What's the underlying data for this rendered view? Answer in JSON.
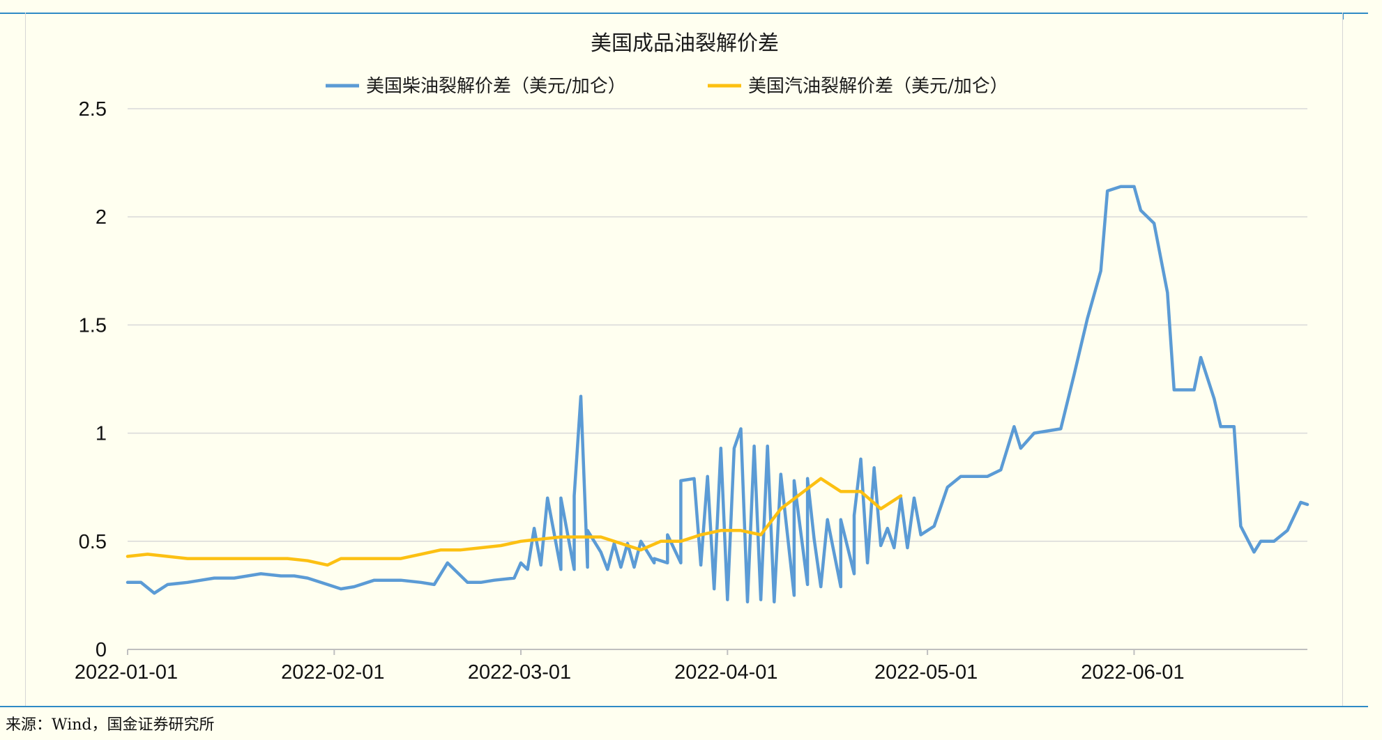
{
  "source": "来源：Wind，国金证券研究所",
  "colors": {
    "diesel": "#5b9bd5",
    "gasoline": "#fcc012",
    "frame": "#2e8ac6"
  },
  "chart_data": {
    "type": "line",
    "title": "美国成品油裂解价差",
    "legend_position": "top",
    "grid": "horizontal",
    "ylim": [
      0,
      2.5
    ],
    "yticks": [
      "0",
      "0.5",
      "1",
      "1.5",
      "2",
      "2.5"
    ],
    "xlim": [
      "2022-01-01",
      "2022-06-27"
    ],
    "xticks": [
      "2022-01-01",
      "2022-02-01",
      "2022-03-01",
      "2022-04-01",
      "2022-05-01",
      "2022-06-01"
    ],
    "series": [
      {
        "name": "美国柴油裂解价差（美元/加仑）",
        "color": "#5b9bd5",
        "points": [
          [
            "2022-01-01",
            0.31
          ],
          [
            "2022-01-03",
            0.31
          ],
          [
            "2022-01-05",
            0.26
          ],
          [
            "2022-01-07",
            0.3
          ],
          [
            "2022-01-10",
            0.31
          ],
          [
            "2022-01-12",
            0.32
          ],
          [
            "2022-01-14",
            0.33
          ],
          [
            "2022-01-17",
            0.33
          ],
          [
            "2022-01-19",
            0.34
          ],
          [
            "2022-01-21",
            0.35
          ],
          [
            "2022-01-24",
            0.34
          ],
          [
            "2022-01-26",
            0.34
          ],
          [
            "2022-01-28",
            0.33
          ],
          [
            "2022-01-31",
            0.3
          ],
          [
            "2022-02-02",
            0.28
          ],
          [
            "2022-02-04",
            0.29
          ],
          [
            "2022-02-07",
            0.32
          ],
          [
            "2022-02-09",
            0.32
          ],
          [
            "2022-02-11",
            0.32
          ],
          [
            "2022-02-14",
            0.31
          ],
          [
            "2022-02-16",
            0.3
          ],
          [
            "2022-02-18",
            0.4
          ],
          [
            "2022-02-21",
            0.31
          ],
          [
            "2022-02-23",
            0.31
          ],
          [
            "2022-02-25",
            0.32
          ],
          [
            "2022-02-28",
            0.33
          ],
          [
            "2022-03-02",
            0.37
          ],
          [
            "2022-03-04",
            0.39
          ],
          [
            "2022-03-07",
            0.37
          ],
          [
            "2022-03-09",
            0.37
          ],
          [
            "2022-03-11",
            0.38
          ],
          [
            "2022-03-14",
            0.37
          ],
          [
            "2022-03-16",
            0.38
          ],
          [
            "2022-03-18",
            0.38
          ],
          [
            "2022-03-21",
            0.4
          ],
          [
            "2022-03-23",
            0.4
          ],
          [
            "2022-03-25",
            0.4
          ],
          [
            "2022-03-28",
            0.39
          ],
          [
            "2022-03-30",
            0.28
          ],
          [
            "2022-04-01",
            0.23
          ],
          [
            "2022-04-04",
            0.22
          ],
          [
            "2022-04-06",
            0.23
          ],
          [
            "2022-04-08",
            0.22
          ],
          [
            "2022-04-11",
            0.25
          ],
          [
            "2022-04-13",
            0.3
          ],
          [
            "2022-04-15",
            0.29
          ],
          [
            "2022-04-18",
            0.29
          ],
          [
            "2022-04-20",
            0.35
          ],
          [
            "2022-04-22",
            0.4
          ],
          [
            "2022-04-25",
            0.56
          ],
          [
            "2022-04-27",
            0.7
          ],
          [
            "2022-04-29",
            0.7
          ],
          [
            "2022-03-01",
            0.4
          ],
          [
            "2022-03-03",
            0.56
          ],
          [
            "2022-03-05",
            0.7
          ],
          [
            "2022-03-07",
            0.7
          ],
          [
            "2022-03-09",
            0.71
          ],
          [
            "2022-03-10",
            1.17
          ],
          [
            "2022-03-11",
            0.55
          ],
          [
            "2022-03-13",
            0.45
          ],
          [
            "2022-03-15",
            0.49
          ],
          [
            "2022-03-17",
            0.49
          ],
          [
            "2022-03-19",
            0.5
          ],
          [
            "2022-03-21",
            0.42
          ],
          [
            "2022-03-23",
            0.53
          ],
          [
            "2022-03-25",
            0.78
          ],
          [
            "2022-03-27",
            0.79
          ],
          [
            "2022-03-29",
            0.8
          ],
          [
            "2022-03-31",
            0.93
          ],
          [
            "2022-04-02",
            0.93
          ],
          [
            "2022-04-03",
            1.02
          ],
          [
            "2022-04-05",
            0.94
          ],
          [
            "2022-04-07",
            0.94
          ],
          [
            "2022-04-09",
            0.81
          ],
          [
            "2022-04-11",
            0.78
          ],
          [
            "2022-04-13",
            0.79
          ],
          [
            "2022-04-14",
            0.51
          ],
          [
            "2022-04-16",
            0.6
          ],
          [
            "2022-04-18",
            0.6
          ],
          [
            "2022-04-20",
            0.62
          ],
          [
            "2022-04-21",
            0.88
          ],
          [
            "2022-04-23",
            0.84
          ],
          [
            "2022-04-24",
            0.48
          ],
          [
            "2022-04-26",
            0.47
          ],
          [
            "2022-04-28",
            0.47
          ],
          [
            "2022-04-30",
            0.53
          ],
          [
            "2022-05-02",
            0.57
          ],
          [
            "2022-05-04",
            0.75
          ],
          [
            "2022-05-06",
            0.8
          ],
          [
            "2022-05-08",
            0.8
          ],
          [
            "2022-05-10",
            0.8
          ],
          [
            "2022-05-12",
            0.83
          ],
          [
            "2022-05-14",
            1.03
          ],
          [
            "2022-05-15",
            0.93
          ],
          [
            "2022-05-17",
            1.0
          ],
          [
            "2022-05-19",
            1.01
          ],
          [
            "2022-05-21",
            1.02
          ],
          [
            "2022-05-23",
            1.27
          ],
          [
            "2022-05-25",
            1.53
          ],
          [
            "2022-05-27",
            1.75
          ],
          [
            "2022-05-28",
            2.12
          ],
          [
            "2022-05-30",
            2.14
          ],
          [
            "2022-06-01",
            2.14
          ],
          [
            "2022-06-02",
            2.03
          ],
          [
            "2022-06-04",
            1.97
          ],
          [
            "2022-06-06",
            1.65
          ],
          [
            "2022-06-07",
            1.2
          ],
          [
            "2022-06-09",
            1.2
          ],
          [
            "2022-06-10",
            1.2
          ],
          [
            "2022-06-11",
            1.35
          ],
          [
            "2022-06-13",
            1.16
          ],
          [
            "2022-06-14",
            1.03
          ],
          [
            "2022-06-16",
            1.03
          ],
          [
            "2022-06-17",
            0.57
          ],
          [
            "2022-06-19",
            0.45
          ],
          [
            "2022-06-20",
            0.5
          ],
          [
            "2022-06-22",
            0.5
          ],
          [
            "2022-06-24",
            0.55
          ],
          [
            "2022-06-26",
            0.68
          ],
          [
            "2022-06-27",
            0.67
          ]
        ]
      },
      {
        "name": "美国汽油裂解价差（美元/加仑）",
        "color": "#fcc012",
        "points": [
          [
            "2022-01-01",
            0.43
          ],
          [
            "2022-01-04",
            0.44
          ],
          [
            "2022-01-07",
            0.43
          ],
          [
            "2022-01-10",
            0.42
          ],
          [
            "2022-01-13",
            0.42
          ],
          [
            "2022-01-16",
            0.42
          ],
          [
            "2022-01-19",
            0.42
          ],
          [
            "2022-01-22",
            0.42
          ],
          [
            "2022-01-25",
            0.42
          ],
          [
            "2022-01-28",
            0.41
          ],
          [
            "2022-01-31",
            0.39
          ],
          [
            "2022-02-02",
            0.42
          ],
          [
            "2022-02-05",
            0.42
          ],
          [
            "2022-02-08",
            0.42
          ],
          [
            "2022-02-11",
            0.42
          ],
          [
            "2022-02-14",
            0.44
          ],
          [
            "2022-02-17",
            0.46
          ],
          [
            "2022-02-20",
            0.46
          ],
          [
            "2022-02-23",
            0.47
          ],
          [
            "2022-02-26",
            0.48
          ],
          [
            "2022-03-01",
            0.5
          ],
          [
            "2022-03-04",
            0.51
          ],
          [
            "2022-03-07",
            0.52
          ],
          [
            "2022-03-10",
            0.52
          ],
          [
            "2022-03-13",
            0.52
          ],
          [
            "2022-03-16",
            0.49
          ],
          [
            "2022-03-19",
            0.46
          ],
          [
            "2022-03-22",
            0.5
          ],
          [
            "2022-03-25",
            0.5
          ],
          [
            "2022-03-28",
            0.53
          ],
          [
            "2022-03-31",
            0.55
          ],
          [
            "2022-04-03",
            0.55
          ],
          [
            "2022-04-06",
            0.53
          ],
          [
            "2022-04-09",
            0.65
          ],
          [
            "2022-04-12",
            0.72
          ],
          [
            "2022-04-15",
            0.79
          ],
          [
            "2022-04-18",
            0.73
          ],
          [
            "2022-04-21",
            0.73
          ],
          [
            "2022-04-24",
            0.65
          ],
          [
            "2022-04-27",
            0.71
          ]
        ]
      }
    ]
  }
}
